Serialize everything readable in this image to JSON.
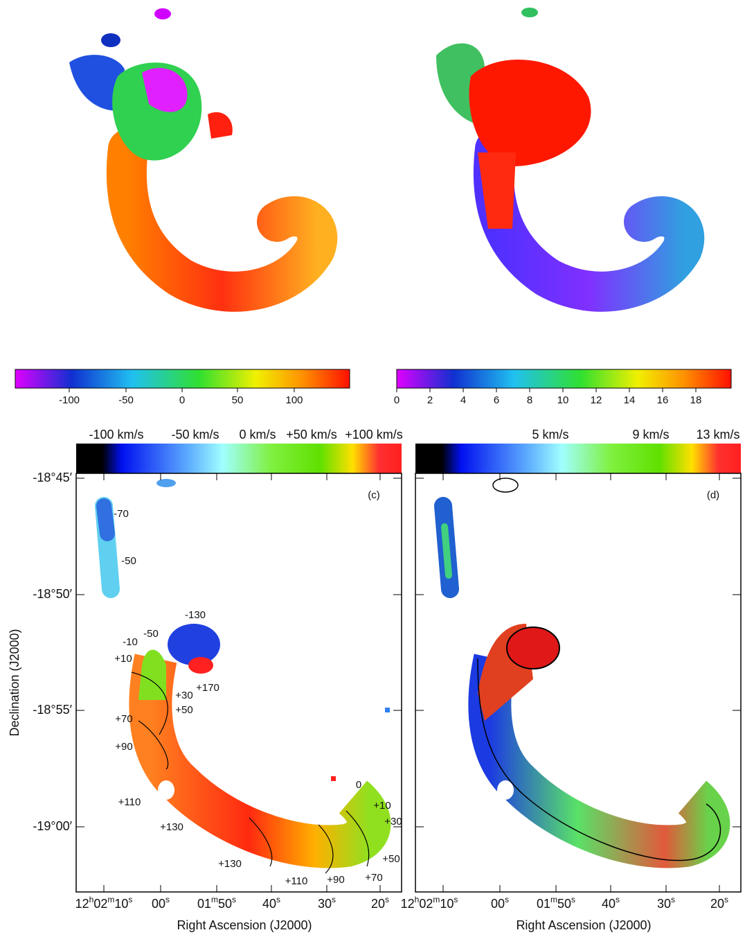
{
  "panels": [
    {
      "colorbar_ticks": [
        "-100",
        "-50",
        "0",
        "50",
        "100"
      ]
    },
    {
      "colorbar_ticks": [
        "0",
        "2",
        "4",
        "6",
        "8",
        "10",
        "12",
        "14",
        "16",
        "18"
      ]
    },
    {
      "colorbar_labels": [
        "-100 km/s",
        "-50 km/s",
        "0 km/s",
        "+50 km/s",
        "+100 km/s"
      ],
      "letter": "(c)",
      "yticks": [
        "-18°45′",
        "-18°50′",
        "-18°55′",
        "-19°00′"
      ],
      "xticks": [
        [
          "12",
          "h",
          "02",
          "m",
          "10",
          "s"
        ],
        [
          "00",
          "s"
        ],
        [
          "01",
          "m",
          "50",
          "s"
        ],
        [
          "40",
          "s"
        ],
        [
          "30",
          "s"
        ],
        [
          "20",
          "s"
        ]
      ],
      "x_label": "Right Ascension (J2000)",
      "y_label": "Declination (J2000)",
      "contour_labels": [
        "-70",
        "-50",
        "-130",
        "-50",
        "-10",
        "+10",
        "+30",
        "+50",
        "+170",
        "+70",
        "+90",
        "+110",
        "+130",
        "+130",
        "+110",
        "+90",
        "+70",
        "+50",
        "+30",
        "+10",
        "0"
      ]
    },
    {
      "colorbar_labels": [
        "5 km/s",
        "9 km/s",
        "13 km/s"
      ],
      "letter": "(d)",
      "xticks": [
        [
          "12",
          "h",
          "02",
          "m",
          "10",
          "s"
        ],
        [
          "00",
          "s"
        ],
        [
          "01",
          "m",
          "50",
          "s"
        ],
        [
          "40",
          "s"
        ],
        [
          "30",
          "s"
        ],
        [
          "20",
          "s"
        ]
      ],
      "x_label": "Right Ascension (J2000)"
    }
  ]
}
